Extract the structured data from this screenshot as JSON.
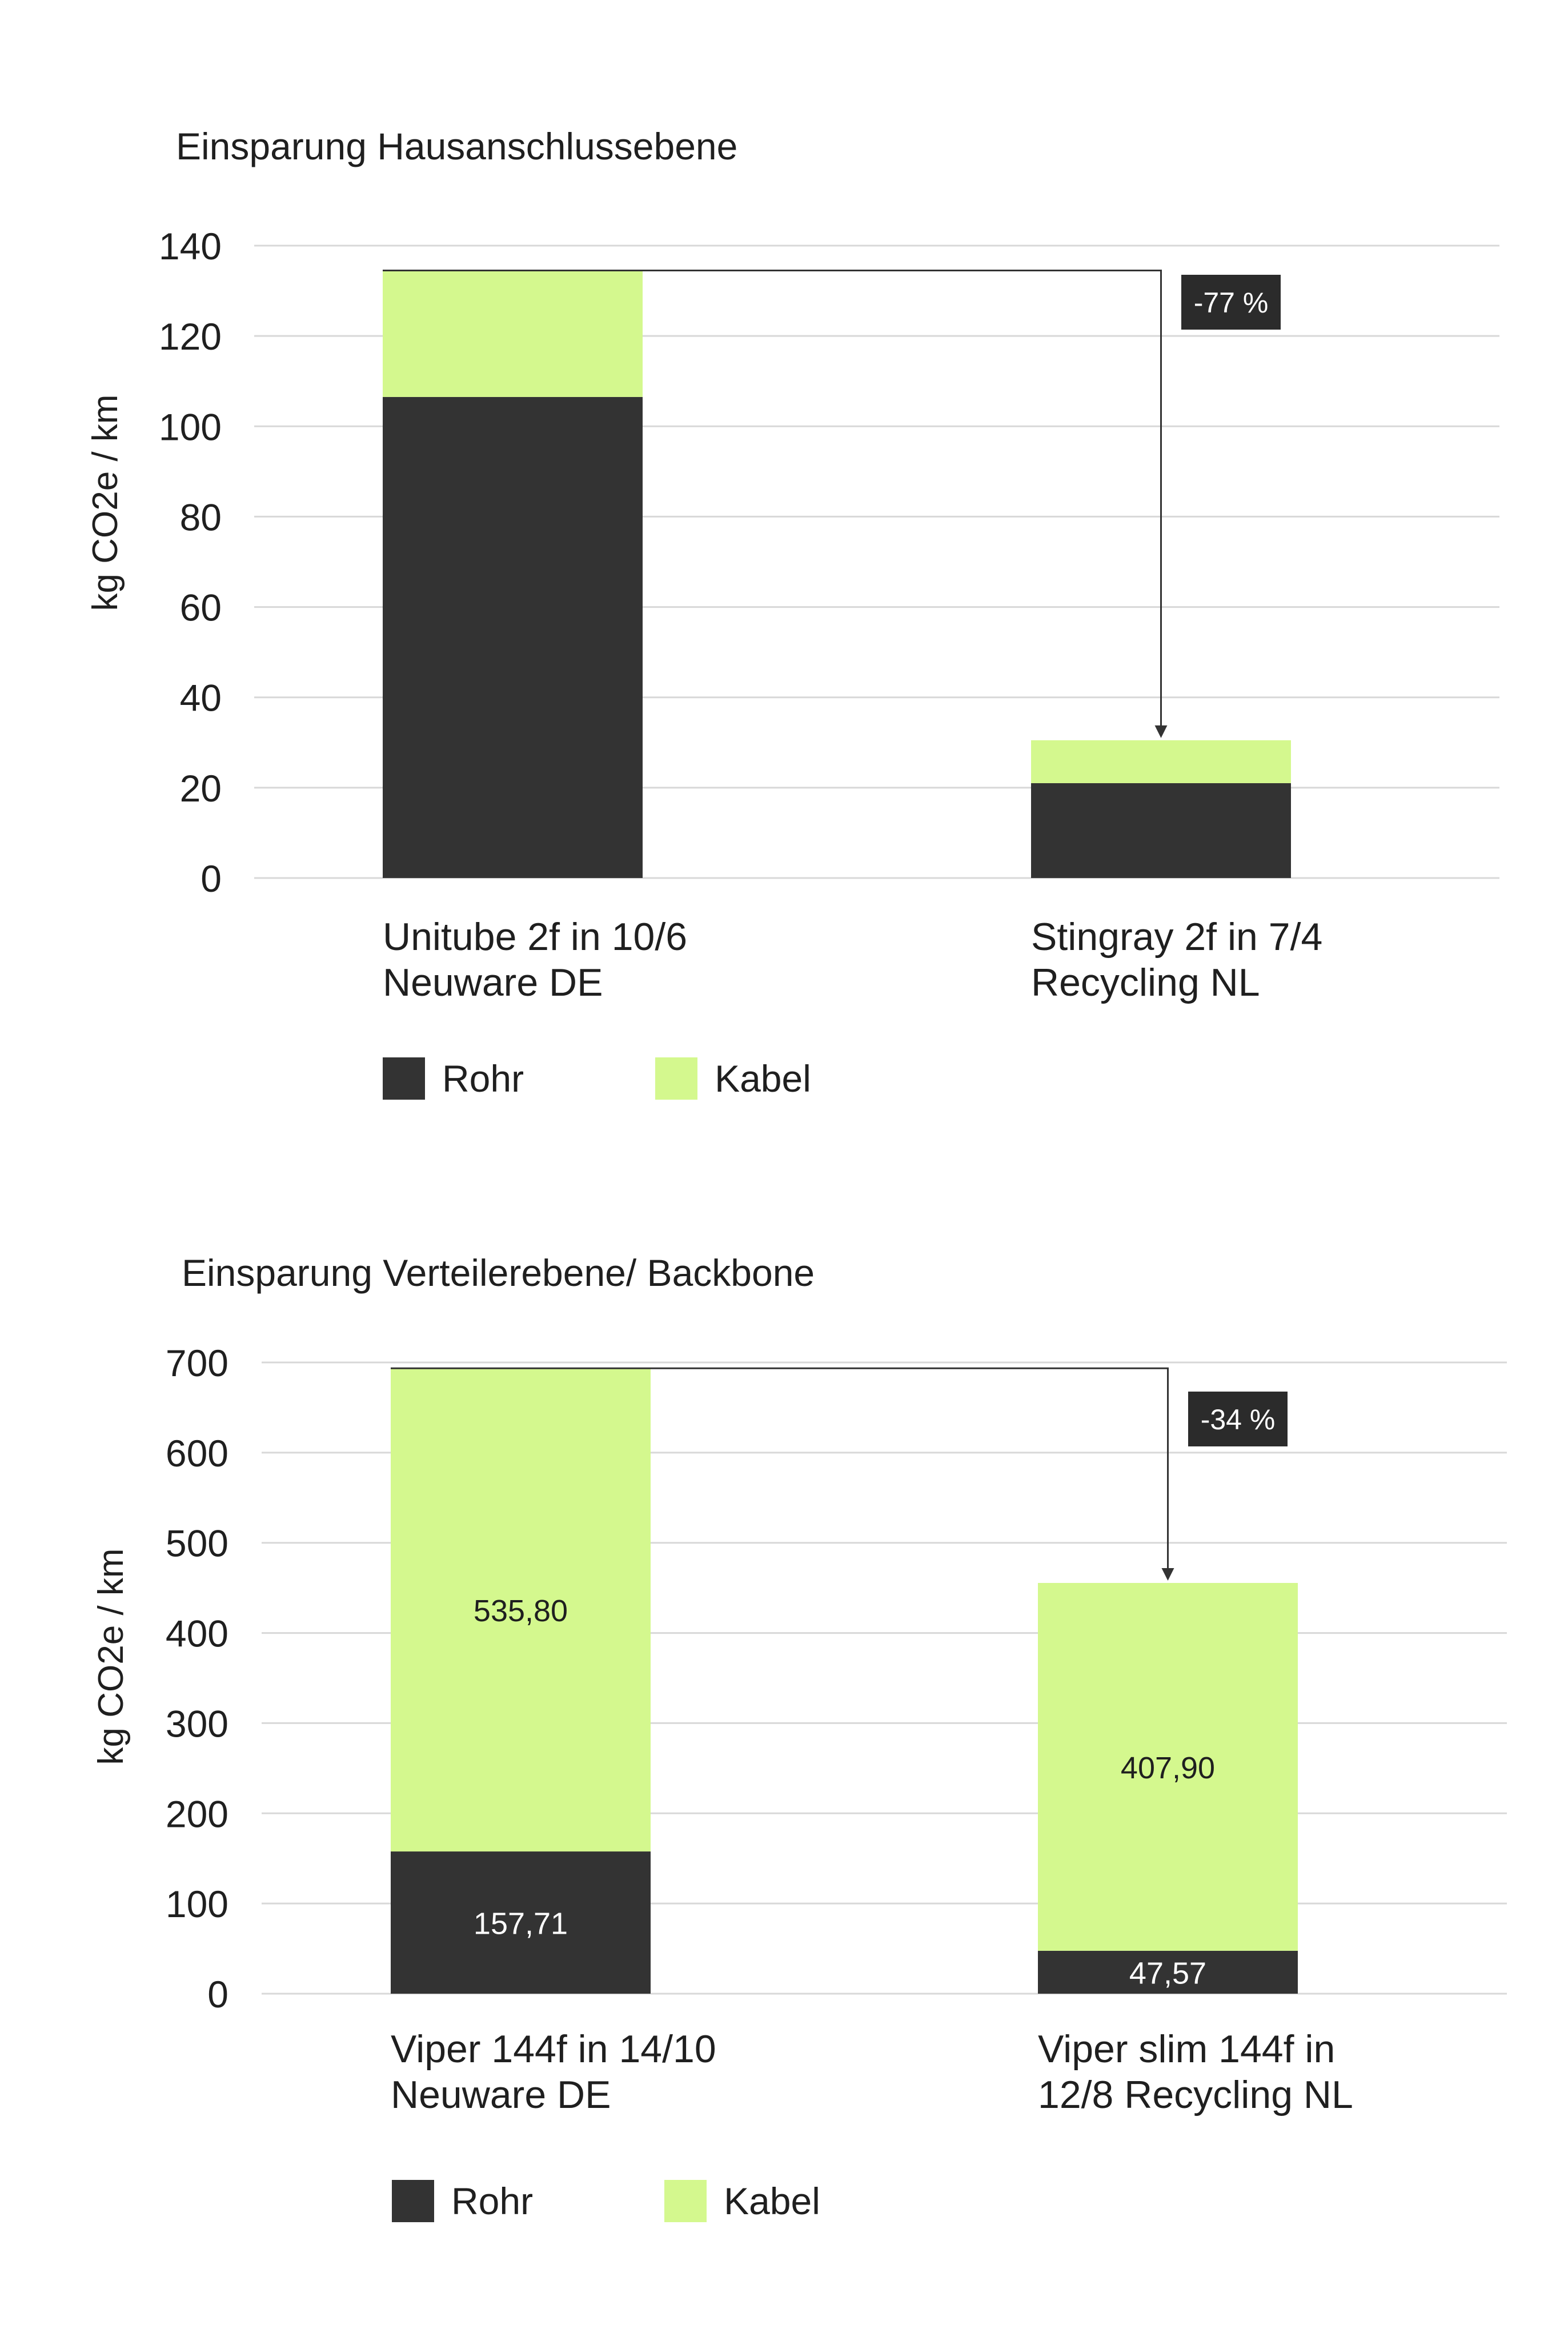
{
  "colors": {
    "rohr": "#333333",
    "kabel": "#d4f88e",
    "grid": "#d8d8d8",
    "badge": "#2b2b2b"
  },
  "legend": {
    "rohr": "Rohr",
    "kabel": "Kabel"
  },
  "chart_data": [
    {
      "type": "bar",
      "stacked": true,
      "title": "Einsparung Hausanschlussebene",
      "ylabel": "kg CO2e / km",
      "ylim": [
        0,
        140
      ],
      "yticks": [
        0,
        20,
        40,
        60,
        80,
        100,
        120,
        140
      ],
      "categories": [
        "Unitube 2f in 10/6\nNeuware DE",
        "Stingray 2f in 7/4\nRecycling NL"
      ],
      "series": [
        {
          "name": "Rohr",
          "values": [
            106.5,
            21
          ],
          "labels": [
            "",
            ""
          ]
        },
        {
          "name": "Kabel",
          "values": [
            28,
            9.5
          ],
          "labels": [
            "",
            ""
          ]
        }
      ],
      "annotation": "-77 %",
      "grid": true,
      "legend_position": "bottom-left"
    },
    {
      "type": "bar",
      "stacked": true,
      "title": "Einsparung Verteilerebene/ Backbone",
      "ylabel": "kg CO2e / km",
      "ylim": [
        0,
        700
      ],
      "yticks": [
        0,
        100,
        200,
        300,
        400,
        500,
        600,
        700
      ],
      "categories": [
        "Viper 144f in 14/10\nNeuware DE",
        "Viper slim 144f in\n12/8 Recycling NL"
      ],
      "series": [
        {
          "name": "Rohr",
          "values": [
            157.71,
            47.57
          ],
          "labels": [
            "157,71",
            "47,57"
          ]
        },
        {
          "name": "Kabel",
          "values": [
            535.8,
            407.9
          ],
          "labels": [
            "535,80",
            "407,90"
          ]
        }
      ],
      "annotation": "-34 %",
      "grid": true,
      "legend_position": "bottom-left"
    }
  ]
}
